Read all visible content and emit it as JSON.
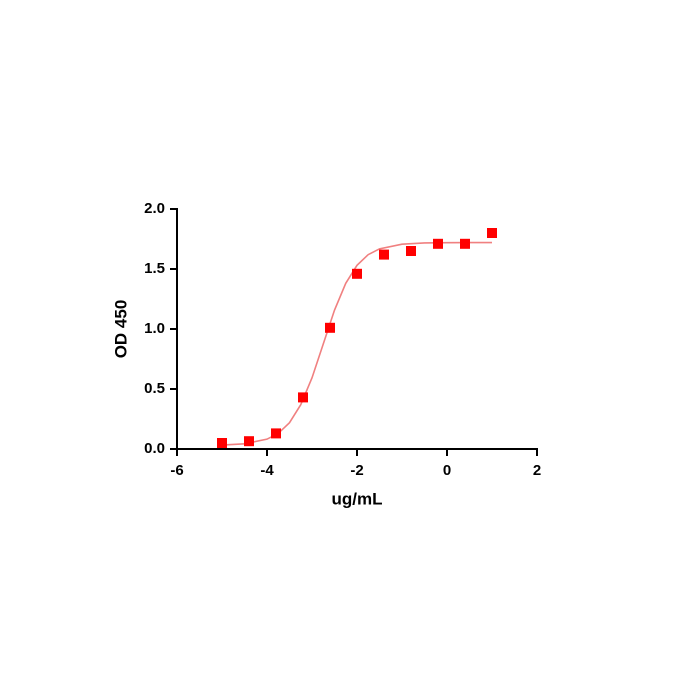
{
  "chart_data": {
    "type": "scatter",
    "x_label": "ug/mL",
    "y_label": "OD 450",
    "xlim": [
      -6,
      2
    ],
    "xticks": [
      -6,
      -4,
      -2,
      0,
      2
    ],
    "ylim": [
      0,
      2
    ],
    "yticks": [
      {
        "value": 0,
        "label": "0.0"
      },
      {
        "value": 0.5,
        "label": "0.5"
      },
      {
        "value": 1,
        "label": "1.0"
      },
      {
        "value": 1.5,
        "label": "1.5"
      },
      {
        "value": 2,
        "label": "2.0"
      }
    ],
    "series": [
      {
        "style": "marker",
        "marker": "square",
        "color": "#ff0000",
        "x": [
          -5.0,
          -4.4,
          -3.8,
          -3.2,
          -2.6,
          -2.0,
          -1.4,
          -0.8,
          -0.2,
          0.4,
          1.0
        ],
        "values": [
          0.05,
          0.065,
          0.13,
          0.43,
          1.01,
          1.46,
          1.62,
          1.65,
          1.71,
          1.71,
          1.8
        ]
      },
      {
        "style": "line",
        "color": "#f08080",
        "x": [
          -5,
          -4.5,
          -4,
          -3.75,
          -3.5,
          -3.25,
          -3,
          -2.75,
          -2.5,
          -2.25,
          -2,
          -1.75,
          -1.5,
          -1,
          -0.5,
          0,
          0.5,
          1
        ],
        "values": [
          0.033,
          0.043,
          0.082,
          0.13,
          0.219,
          0.369,
          0.593,
          0.875,
          1.157,
          1.381,
          1.531,
          1.62,
          1.668,
          1.707,
          1.717,
          1.719,
          1.72,
          1.72
        ]
      }
    ]
  }
}
